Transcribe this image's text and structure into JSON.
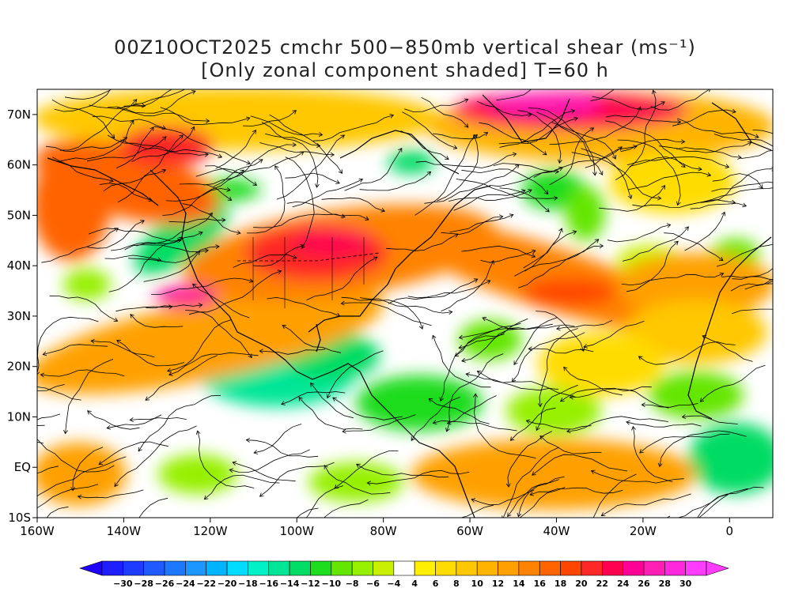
{
  "title": {
    "line1": "00Z10OCT2025 cmchr 500−850mb vertical shear (ms⁻¹)",
    "line2": "[Only zonal component shaded] T=60 h"
  },
  "map": {
    "lon_range": [
      -160,
      10
    ],
    "lat_range": [
      -10,
      75
    ],
    "lat_ticks": [
      "70N",
      "60N",
      "50N",
      "40N",
      "30N",
      "20N",
      "10N",
      "EQ",
      "10S"
    ],
    "lat_values": [
      70,
      60,
      50,
      40,
      30,
      20,
      10,
      0,
      -10
    ],
    "lon_ticks": [
      "160W",
      "140W",
      "120W",
      "100W",
      "80W",
      "60W",
      "40W",
      "20W",
      "0"
    ],
    "lon_values": [
      -160,
      -140,
      -120,
      -100,
      -80,
      -60,
      -40,
      -20,
      0
    ]
  },
  "colorbar": {
    "levels": [
      "-30",
      "-28",
      "-26",
      "-24",
      "-22",
      "-20",
      "-18",
      "-16",
      "-14",
      "-12",
      "-10",
      "-8",
      "-6",
      "-4",
      "4",
      "6",
      "8",
      "10",
      "12",
      "14",
      "16",
      "18",
      "20",
      "22",
      "24",
      "26",
      "28",
      "30"
    ],
    "colors": [
      "#1e1eff",
      "#1e3cff",
      "#1e5aff",
      "#1e78ff",
      "#1e96ff",
      "#00b4ff",
      "#00dcff",
      "#00f0c8",
      "#00e696",
      "#00dc64",
      "#1edc1e",
      "#64e600",
      "#96f000",
      "#c8f000",
      "#ffffff",
      "#fff000",
      "#ffdc00",
      "#ffc800",
      "#ffb400",
      "#ffa000",
      "#ff8200",
      "#ff6400",
      "#ff4600",
      "#ff2828",
      "#ff0050",
      "#ff0096",
      "#ff1eb4",
      "#ff28dc",
      "#ff3cff"
    ],
    "low_color": "#1e00ff",
    "high_color": "#ff3cff"
  }
}
